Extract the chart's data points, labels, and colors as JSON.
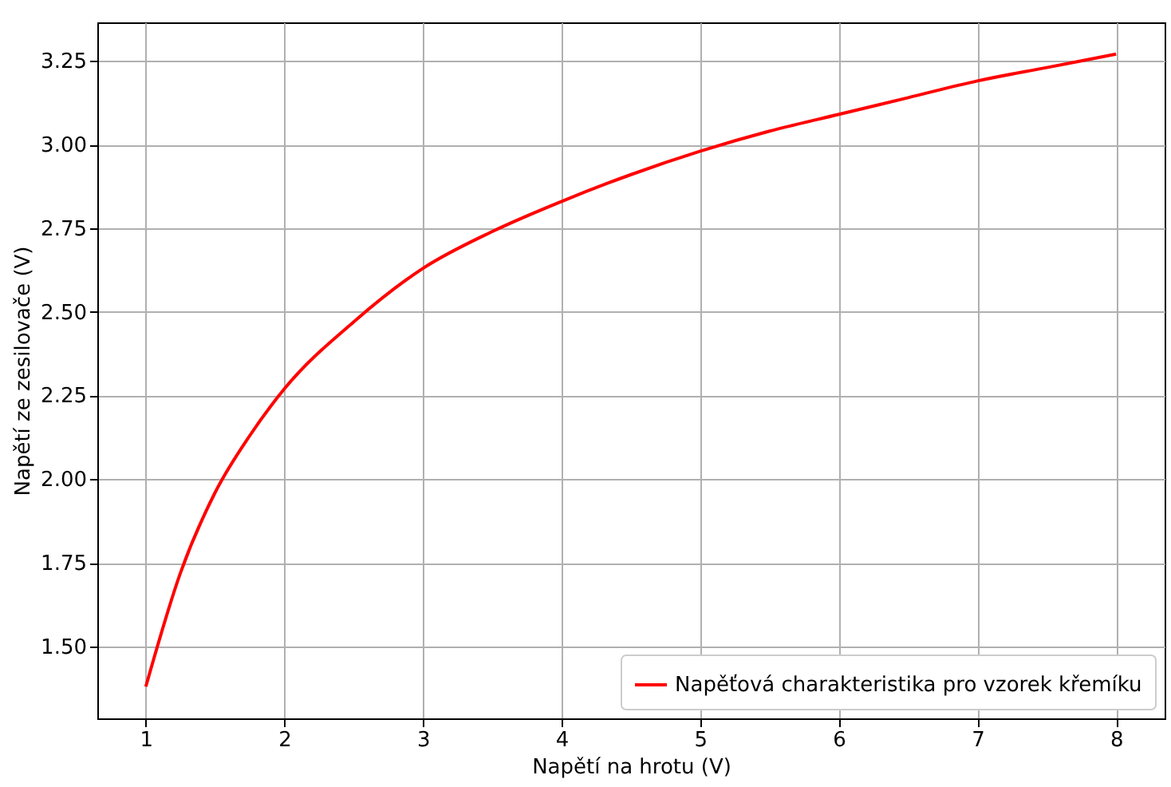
{
  "chart_data": {
    "type": "line",
    "xlabel": "Napětí na hrotu (V)",
    "ylabel": "Napětí ze zesilovače (V)",
    "x": [
      1.0,
      1.25,
      1.5,
      1.75,
      2.0,
      2.5,
      3.0,
      3.5,
      4.0,
      4.5,
      5.0,
      5.5,
      6.0,
      6.5,
      7.0,
      7.5,
      8.0
    ],
    "series": [
      {
        "name": "Napěťová charakteristika pro vzorek křemíku",
        "color": "#ff0000",
        "values": [
          1.38,
          1.72,
          1.96,
          2.13,
          2.27,
          2.47,
          2.63,
          2.74,
          2.83,
          2.91,
          2.98,
          3.04,
          3.09,
          3.14,
          3.19,
          3.23,
          3.27
        ]
      }
    ],
    "xlim": [
      0.65,
      8.35
    ],
    "xticks": [
      1,
      2,
      3,
      4,
      5,
      6,
      7,
      8
    ],
    "ylim": [
      1.285,
      3.365
    ],
    "yticks": [
      {
        "value": 1.5,
        "label": "1.50"
      },
      {
        "value": 1.75,
        "label": "1.75"
      },
      {
        "value": 2.0,
        "label": "2.00"
      },
      {
        "value": 2.25,
        "label": "2.25"
      },
      {
        "value": 2.5,
        "label": "2.50"
      },
      {
        "value": 2.75,
        "label": "2.75"
      },
      {
        "value": 3.0,
        "label": "3.00"
      },
      {
        "value": 3.25,
        "label": "3.25"
      }
    ],
    "grid": true,
    "legend": "bottom right",
    "marker": "none",
    "line_style": "solid"
  }
}
